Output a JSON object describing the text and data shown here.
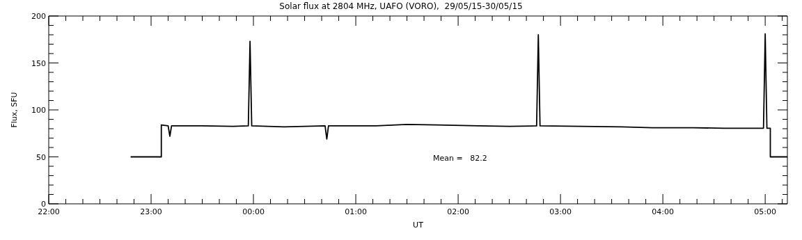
{
  "chart_data": {
    "type": "line",
    "title": "Solar flux at 2804 MHz, UAFO (VORO),  29/05/15-30/05/15",
    "xlabel": "UT",
    "ylabel": "Flux, SFU",
    "annotations": [
      "Mean =   82.2"
    ],
    "x": [
      "--05-29T22:48",
      "--05-29T23:06",
      "--05-29T23:06",
      "--05-29T23:10",
      "--05-29T23:11",
      "--05-29T23:12",
      "--05-29T23:30",
      "--05-29T23:48",
      "--05-29T23:57",
      "--05-29T23:58",
      "--05-29T23:59",
      "--05-30T00:18",
      "--05-30T00:42",
      "--05-30T00:43",
      "--05-30T00:44",
      "--05-30T01:12",
      "--05-30T01:30",
      "--05-30T01:48",
      "--05-30T02:12",
      "--05-30T02:30",
      "--05-30T02:46",
      "--05-30T02:47",
      "--05-30T02:48",
      "--05-30T03:12",
      "--05-30T03:36",
      "--05-30T03:54",
      "--05-30T04:18",
      "--05-30T04:36",
      "--05-30T04:59",
      "--05-30T05:00",
      "--05-30T05:01",
      "--05-30T05:03",
      "--05-30T05:03",
      "--05-30T05:13"
    ],
    "series": [
      {
        "color": "#000000",
        "values": [
          50,
          50,
          84,
          83,
          72,
          83,
          83,
          82.5,
          83,
          173,
          83,
          82,
          83,
          69,
          83,
          83,
          84.5,
          84,
          83,
          82.5,
          83,
          180,
          83,
          82.5,
          82,
          81,
          81,
          80.5,
          80.5,
          181,
          80.5,
          80.5,
          50,
          50
        ]
      }
    ],
    "xlim": [
      "--05-29T22:00",
      "--05-30T05:13"
    ],
    "xticks": [
      {
        "value": "--05-29T22:00",
        "label": "22:00"
      },
      {
        "value": "--05-29T22:10",
        "label": null
      },
      {
        "value": "--05-29T22:20",
        "label": null
      },
      {
        "value": "--05-29T22:30",
        "label": null
      },
      {
        "value": "--05-29T22:40",
        "label": null
      },
      {
        "value": "--05-29T22:50",
        "label": null
      },
      {
        "value": "--05-29T23:00",
        "label": "23:00"
      },
      {
        "value": "--05-29T23:10",
        "label": null
      },
      {
        "value": "--05-29T23:20",
        "label": null
      },
      {
        "value": "--05-29T23:30",
        "label": null
      },
      {
        "value": "--05-29T23:40",
        "label": null
      },
      {
        "value": "--05-29T23:50",
        "label": null
      },
      {
        "value": "--05-30T00:00",
        "label": "00:00"
      },
      {
        "value": "--05-30T00:10",
        "label": null
      },
      {
        "value": "--05-30T00:20",
        "label": null
      },
      {
        "value": "--05-30T00:30",
        "label": null
      },
      {
        "value": "--05-30T00:40",
        "label": null
      },
      {
        "value": "--05-30T00:50",
        "label": null
      },
      {
        "value": "--05-30T01:00",
        "label": "01:00"
      },
      {
        "value": "--05-30T01:10",
        "label": null
      },
      {
        "value": "--05-30T01:20",
        "label": null
      },
      {
        "value": "--05-30T01:30",
        "label": null
      },
      {
        "value": "--05-30T01:40",
        "label": null
      },
      {
        "value": "--05-30T01:50",
        "label": null
      },
      {
        "value": "--05-30T02:00",
        "label": "02:00"
      },
      {
        "value": "--05-30T02:10",
        "label": null
      },
      {
        "value": "--05-30T02:20",
        "label": null
      },
      {
        "value": "--05-30T02:30",
        "label": null
      },
      {
        "value": "--05-30T02:40",
        "label": null
      },
      {
        "value": "--05-30T02:50",
        "label": null
      },
      {
        "value": "--05-30T03:00",
        "label": "03:00"
      },
      {
        "value": "--05-30T03:10",
        "label": null
      },
      {
        "value": "--05-30T03:20",
        "label": null
      },
      {
        "value": "--05-30T03:30",
        "label": null
      },
      {
        "value": "--05-30T03:40",
        "label": null
      },
      {
        "value": "--05-30T03:50",
        "label": null
      },
      {
        "value": "--05-30T04:00",
        "label": "04:00"
      },
      {
        "value": "--05-30T04:10",
        "label": null
      },
      {
        "value": "--05-30T04:20",
        "label": null
      },
      {
        "value": "--05-30T04:30",
        "label": null
      },
      {
        "value": "--05-30T04:40",
        "label": null
      },
      {
        "value": "--05-30T04:50",
        "label": null
      },
      {
        "value": "--05-30T05:00",
        "label": "05:00"
      },
      {
        "value": "--05-30T05:10",
        "label": null
      }
    ],
    "ylim": [
      0,
      200
    ],
    "yticks": [
      0,
      {
        "value": 10,
        "label": null
      },
      {
        "value": 20,
        "label": null
      },
      {
        "value": 30,
        "label": null
      },
      {
        "value": 40,
        "label": null
      },
      50,
      {
        "value": 60,
        "label": null
      },
      {
        "value": 70,
        "label": null
      },
      {
        "value": 80,
        "label": null
      },
      {
        "value": 90,
        "label": null
      },
      100,
      {
        "value": 110,
        "label": null
      },
      {
        "value": 120,
        "label": null
      },
      {
        "value": 130,
        "label": null
      },
      {
        "value": 140,
        "label": null
      },
      150,
      {
        "value": 160,
        "label": null
      },
      {
        "value": 170,
        "label": null
      },
      {
        "value": 180,
        "label": null
      },
      {
        "value": 190,
        "label": null
      },
      200
    ],
    "grid": false,
    "legend": false,
    "marker": "none",
    "line_style": "solid"
  }
}
